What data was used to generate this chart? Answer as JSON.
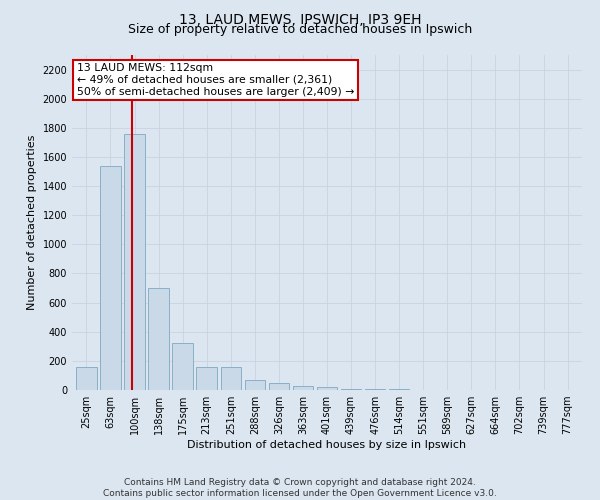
{
  "title1": "13, LAUD MEWS, IPSWICH, IP3 9EH",
  "title2": "Size of property relative to detached houses in Ipswich",
  "xlabel": "Distribution of detached houses by size in Ipswich",
  "ylabel": "Number of detached properties",
  "categories": [
    "25sqm",
    "63sqm",
    "100sqm",
    "138sqm",
    "175sqm",
    "213sqm",
    "251sqm",
    "288sqm",
    "326sqm",
    "363sqm",
    "401sqm",
    "439sqm",
    "476sqm",
    "514sqm",
    "551sqm",
    "589sqm",
    "627sqm",
    "664sqm",
    "702sqm",
    "739sqm",
    "777sqm"
  ],
  "values": [
    155,
    1540,
    1760,
    700,
    320,
    160,
    155,
    70,
    45,
    28,
    18,
    10,
    8,
    4,
    3,
    2,
    1,
    1,
    0,
    1,
    0
  ],
  "bar_color": "#c9d9e8",
  "bar_edge_color": "#8aafc8",
  "annotation_box_color": "#ffffff",
  "annotation_box_edge": "#cc0000",
  "vline_color": "#cc0000",
  "property_label": "13 LAUD MEWS: 112sqm",
  "annotation_line1": "← 49% of detached houses are smaller (2,361)",
  "annotation_line2": "50% of semi-detached houses are larger (2,409) →",
  "ylim": [
    0,
    2300
  ],
  "yticks": [
    0,
    200,
    400,
    600,
    800,
    1000,
    1200,
    1400,
    1600,
    1800,
    2000,
    2200
  ],
  "grid_color": "#c8d4e0",
  "footer1": "Contains HM Land Registry data © Crown copyright and database right 2024.",
  "footer2": "Contains public sector information licensed under the Open Government Licence v3.0.",
  "bg_color": "#dce6f0",
  "plot_bg_color": "#dce6f0",
  "title1_fontsize": 10,
  "title2_fontsize": 9,
  "tick_fontsize": 7,
  "ylabel_fontsize": 8,
  "xlabel_fontsize": 8,
  "footer_fontsize": 6.5,
  "ann_fontsize": 7.8
}
